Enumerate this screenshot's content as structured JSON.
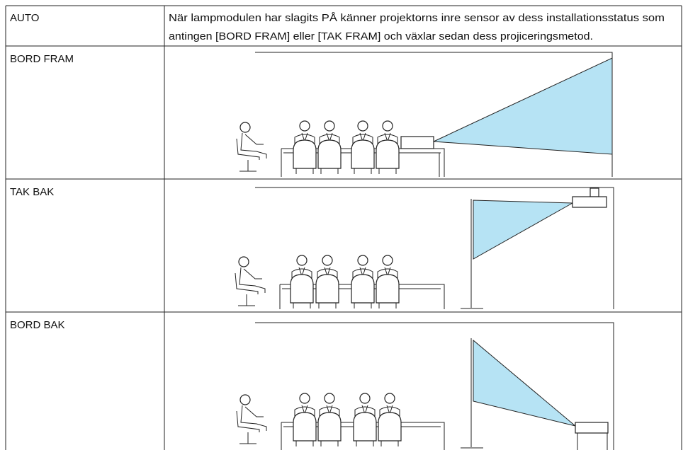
{
  "table": {
    "rows": [
      {
        "label": "AUTO",
        "text": [
          "När lampmodulen har slagits PÅ känner projektorns inre sensor av dess installationsstatus som",
          "antingen [BORD FRAM] eller [TAK FRAM] och växlar sedan dess projiceringsmetod."
        ]
      },
      {
        "label": "BORD FRAM"
      },
      {
        "label": "TAK BAK"
      },
      {
        "label": "BORD BAK"
      }
    ]
  }
}
